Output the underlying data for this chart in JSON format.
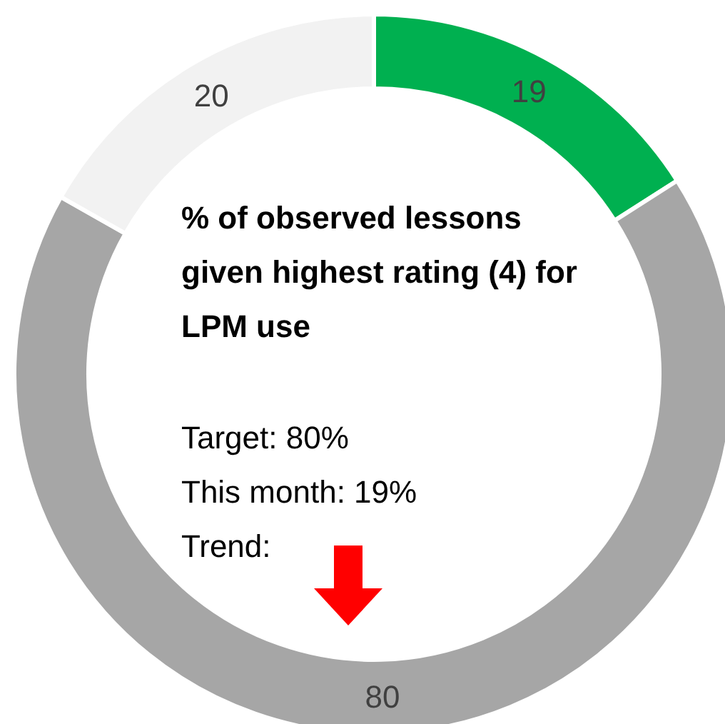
{
  "chart_data": {
    "type": "donut",
    "title": "% of observed lessons given highest rating (4) for LPM use",
    "categories": [
      null,
      null,
      null
    ],
    "values": [
      19,
      80,
      20
    ],
    "colors": [
      "#00b050",
      "#a6a6a6",
      "#f2f2f2"
    ],
    "data_labels": true,
    "annotations": [
      "Target: 80%",
      "This month: 19%",
      "Trend:"
    ]
  }
}
